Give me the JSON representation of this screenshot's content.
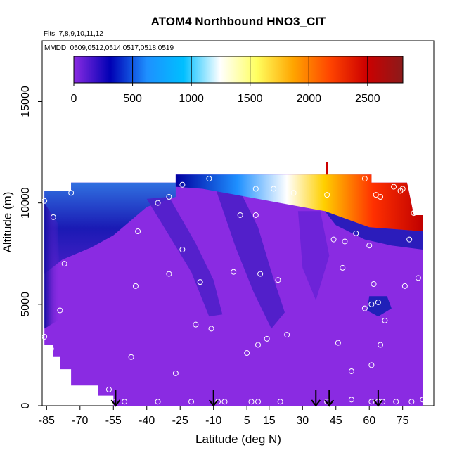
{
  "chart_data": {
    "type": "heatmap",
    "title": "ATOM4 Northbound HNO3_CIT",
    "flights_label": "Flts: 7,8,9,10,11,12",
    "dates_label": "MMDD: 0509,0512,0514,0517,0518,0519",
    "xlabel": "Latitude (deg N)",
    "ylabel": "Altitude (m)",
    "xlim": [
      -87,
      89
    ],
    "ylim": [
      0,
      18000
    ],
    "x_ticks": [
      -85,
      -70,
      -55,
      -40,
      -25,
      -10,
      5,
      15,
      30,
      45,
      60,
      75
    ],
    "y_ticks": [
      0,
      5000,
      10000,
      15000
    ],
    "colorbar": {
      "min": 0,
      "max": 2800,
      "ticks": [
        0,
        500,
        1000,
        1500,
        2000,
        2500
      ],
      "colors": [
        "#8a2be2",
        "#0000b4",
        "#1e90ff",
        "#00bfff",
        "#ffffff",
        "#ffff60",
        "#ffa500",
        "#ff4500",
        "#cd0000",
        "#8b1a1a"
      ]
    },
    "arrows_latitude": [
      -54,
      -10,
      36,
      42,
      64
    ],
    "sample_points": [
      [
        -86,
        10100
      ],
      [
        -82,
        9300
      ],
      [
        -79,
        4700
      ],
      [
        -74,
        10500
      ],
      [
        -77,
        7000
      ],
      [
        -83,
        2800
      ],
      [
        -79,
        1300
      ],
      [
        -86,
        3400
      ],
      [
        -55,
        200
      ],
      [
        -57,
        800
      ],
      [
        -50,
        200
      ],
      [
        -47,
        2400
      ],
      [
        -45,
        5900
      ],
      [
        -44,
        8600
      ],
      [
        -35,
        10000
      ],
      [
        -30,
        10300
      ],
      [
        -35,
        200
      ],
      [
        -30,
        6500
      ],
      [
        -24,
        10900
      ],
      [
        -27,
        1600
      ],
      [
        -24,
        7700
      ],
      [
        -20,
        200
      ],
      [
        -18,
        4000
      ],
      [
        -16,
        6100
      ],
      [
        -11,
        3800
      ],
      [
        -8,
        200
      ],
      [
        -5,
        200
      ],
      [
        -1,
        6600
      ],
      [
        2,
        9400
      ],
      [
        5,
        2600
      ],
      [
        9,
        9400
      ],
      [
        7,
        200
      ],
      [
        9,
        10700
      ],
      [
        10,
        3000
      ],
      [
        10,
        200
      ],
      [
        11,
        6500
      ],
      [
        14,
        3300
      ],
      [
        17,
        10700
      ],
      [
        19,
        6200
      ],
      [
        20,
        200
      ],
      [
        23,
        3500
      ],
      [
        26,
        10500
      ],
      [
        41,
        200
      ],
      [
        44,
        8200
      ],
      [
        46,
        3100
      ],
      [
        48,
        6800
      ],
      [
        49,
        8100
      ],
      [
        52,
        1700
      ],
      [
        54,
        8500
      ],
      [
        52,
        300
      ],
      [
        58,
        4800
      ],
      [
        60,
        7900
      ],
      [
        61,
        200
      ],
      [
        61,
        2000
      ],
      [
        61,
        5000
      ],
      [
        62,
        6000
      ],
      [
        63,
        10400
      ],
      [
        64,
        200
      ],
      [
        64,
        5100
      ],
      [
        65,
        3000
      ],
      [
        66,
        200
      ],
      [
        67,
        4200
      ],
      [
        72,
        200
      ],
      [
        74,
        10600
      ],
      [
        76,
        5900
      ],
      [
        78,
        8200
      ],
      [
        80,
        9500
      ],
      [
        82,
        6300
      ],
      [
        84,
        300
      ],
      [
        79,
        200
      ],
      [
        -12,
        11200
      ],
      [
        41,
        10400
      ],
      [
        58,
        11200
      ],
      [
        65,
        10300
      ],
      [
        71,
        10800
      ],
      [
        75,
        10700
      ]
    ]
  }
}
